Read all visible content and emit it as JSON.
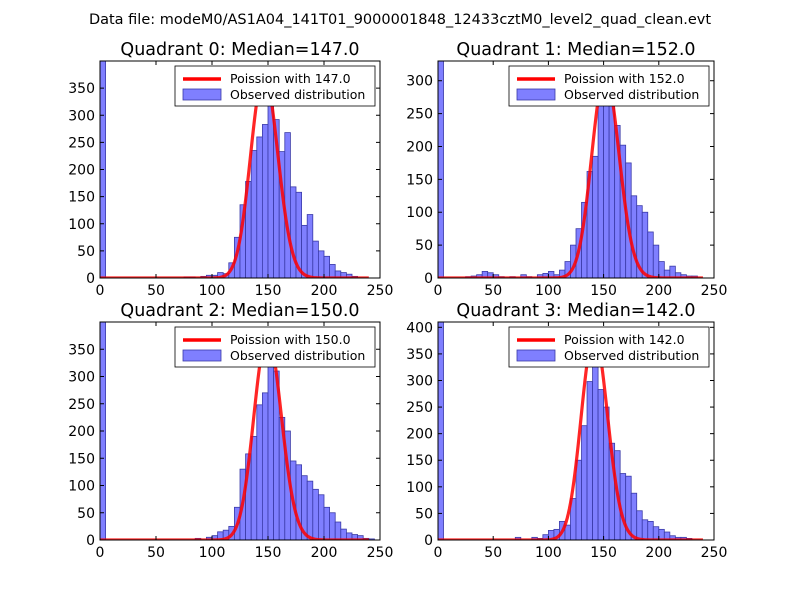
{
  "suptitle": "Data file: modeM0/AS1A04_141T01_9000001848_12433cztM0_level2_quad_clean.evt",
  "colors": {
    "bar": "#7f7fff",
    "bar_edge": "#3a3aa8",
    "line": "#ff0000",
    "axis": "#000000"
  },
  "chart_data": [
    {
      "type": "bar",
      "title": "Quadrant 0: Median=147.0",
      "xlim": [
        0,
        250
      ],
      "ylim": [
        0,
        400
      ],
      "xticks": [
        "0",
        "50",
        "100",
        "150",
        "200",
        "250"
      ],
      "yticks": [
        "0",
        "50",
        "100",
        "150",
        "200",
        "250",
        "300",
        "350"
      ],
      "ytick_values": [
        0,
        50,
        100,
        150,
        200,
        250,
        300,
        350
      ],
      "legend": [
        "Poission with 147.0",
        "Observed distribution"
      ],
      "poisson_mean": 147.0,
      "bin_width": 5,
      "bins": [
        [
          0,
          400
        ],
        [
          75,
          2
        ],
        [
          80,
          2
        ],
        [
          90,
          3
        ],
        [
          95,
          5
        ],
        [
          100,
          5
        ],
        [
          105,
          10
        ],
        [
          110,
          8
        ],
        [
          115,
          28
        ],
        [
          120,
          75
        ],
        [
          125,
          135
        ],
        [
          130,
          178
        ],
        [
          135,
          235
        ],
        [
          140,
          260
        ],
        [
          145,
          283
        ],
        [
          150,
          385
        ],
        [
          155,
          292
        ],
        [
          160,
          233
        ],
        [
          165,
          268
        ],
        [
          170,
          168
        ],
        [
          175,
          158
        ],
        [
          180,
          97
        ],
        [
          185,
          117
        ],
        [
          190,
          68
        ],
        [
          195,
          50
        ],
        [
          200,
          40
        ],
        [
          205,
          25
        ],
        [
          210,
          13
        ],
        [
          215,
          10
        ],
        [
          220,
          7
        ],
        [
          225,
          3
        ]
      ]
    },
    {
      "type": "bar",
      "title": "Quadrant 1: Median=152.0",
      "xlim": [
        0,
        250
      ],
      "ylim": [
        0,
        330
      ],
      "xticks": [
        "0",
        "50",
        "100",
        "150",
        "200",
        "250"
      ],
      "yticks": [
        "0",
        "50",
        "100",
        "150",
        "200",
        "250",
        "300"
      ],
      "ytick_values": [
        0,
        50,
        100,
        150,
        200,
        250,
        300
      ],
      "legend": [
        "Poission with 152.0",
        "Observed distribution"
      ],
      "poisson_mean": 152.0,
      "bin_width": 5,
      "bins": [
        [
          0,
          330
        ],
        [
          25,
          2
        ],
        [
          30,
          3
        ],
        [
          35,
          5
        ],
        [
          40,
          10
        ],
        [
          45,
          8
        ],
        [
          50,
          5
        ],
        [
          55,
          2
        ],
        [
          65,
          2
        ],
        [
          75,
          5
        ],
        [
          80,
          2
        ],
        [
          90,
          5
        ],
        [
          95,
          7
        ],
        [
          100,
          10
        ],
        [
          105,
          5
        ],
        [
          110,
          12
        ],
        [
          115,
          25
        ],
        [
          120,
          50
        ],
        [
          125,
          75
        ],
        [
          130,
          115
        ],
        [
          135,
          162
        ],
        [
          140,
          185
        ],
        [
          145,
          282
        ],
        [
          150,
          300
        ],
        [
          155,
          262
        ],
        [
          160,
          232
        ],
        [
          165,
          202
        ],
        [
          170,
          175
        ],
        [
          175,
          125
        ],
        [
          180,
          110
        ],
        [
          185,
          100
        ],
        [
          190,
          70
        ],
        [
          195,
          50
        ],
        [
          200,
          25
        ],
        [
          205,
          12
        ],
        [
          210,
          18
        ],
        [
          215,
          8
        ],
        [
          220,
          5
        ],
        [
          225,
          3
        ],
        [
          230,
          3
        ]
      ]
    },
    {
      "type": "bar",
      "title": "Quadrant 2: Median=150.0",
      "xlim": [
        0,
        250
      ],
      "ylim": [
        0,
        400
      ],
      "xticks": [
        "0",
        "50",
        "100",
        "150",
        "200",
        "250"
      ],
      "yticks": [
        "0",
        "50",
        "100",
        "150",
        "200",
        "250",
        "300",
        "350"
      ],
      "ytick_values": [
        0,
        50,
        100,
        150,
        200,
        250,
        300,
        350
      ],
      "legend": [
        "Poission with 150.0",
        "Observed distribution"
      ],
      "poisson_mean": 150.0,
      "bin_width": 5,
      "bins": [
        [
          0,
          400
        ],
        [
          85,
          3
        ],
        [
          95,
          5
        ],
        [
          100,
          8
        ],
        [
          105,
          15
        ],
        [
          110,
          18
        ],
        [
          115,
          25
        ],
        [
          120,
          60
        ],
        [
          125,
          130
        ],
        [
          130,
          158
        ],
        [
          135,
          190
        ],
        [
          140,
          248
        ],
        [
          145,
          270
        ],
        [
          150,
          345
        ],
        [
          155,
          310
        ],
        [
          160,
          225
        ],
        [
          165,
          200
        ],
        [
          170,
          145
        ],
        [
          175,
          138
        ],
        [
          180,
          118
        ],
        [
          185,
          108
        ],
        [
          190,
          93
        ],
        [
          195,
          83
        ],
        [
          200,
          60
        ],
        [
          205,
          50
        ],
        [
          210,
          33
        ],
        [
          215,
          20
        ],
        [
          220,
          13
        ],
        [
          225,
          10
        ],
        [
          230,
          8
        ],
        [
          235,
          3
        ],
        [
          240,
          2
        ]
      ]
    },
    {
      "type": "bar",
      "title": "Quadrant 3: Median=142.0",
      "xlim": [
        0,
        250
      ],
      "ylim": [
        0,
        410
      ],
      "xticks": [
        "0",
        "50",
        "100",
        "150",
        "200",
        "250"
      ],
      "yticks": [
        "0",
        "50",
        "100",
        "150",
        "200",
        "250",
        "300",
        "350",
        "400"
      ],
      "ytick_values": [
        0,
        50,
        100,
        150,
        200,
        250,
        300,
        350,
        400
      ],
      "legend": [
        "Poission with 142.0",
        "Observed distribution"
      ],
      "poisson_mean": 142.0,
      "bin_width": 5,
      "bins": [
        [
          0,
          410
        ],
        [
          70,
          5
        ],
        [
          85,
          5
        ],
        [
          90,
          3
        ],
        [
          95,
          10
        ],
        [
          100,
          18
        ],
        [
          105,
          20
        ],
        [
          110,
          35
        ],
        [
          115,
          28
        ],
        [
          120,
          78
        ],
        [
          125,
          150
        ],
        [
          130,
          215
        ],
        [
          135,
          298
        ],
        [
          140,
          395
        ],
        [
          145,
          283
        ],
        [
          150,
          250
        ],
        [
          155,
          182
        ],
        [
          160,
          168
        ],
        [
          165,
          125
        ],
        [
          170,
          120
        ],
        [
          175,
          88
        ],
        [
          180,
          55
        ],
        [
          185,
          38
        ],
        [
          190,
          35
        ],
        [
          195,
          25
        ],
        [
          200,
          20
        ],
        [
          205,
          15
        ],
        [
          210,
          8
        ],
        [
          215,
          5
        ],
        [
          220,
          5
        ],
        [
          225,
          3
        ]
      ]
    }
  ]
}
